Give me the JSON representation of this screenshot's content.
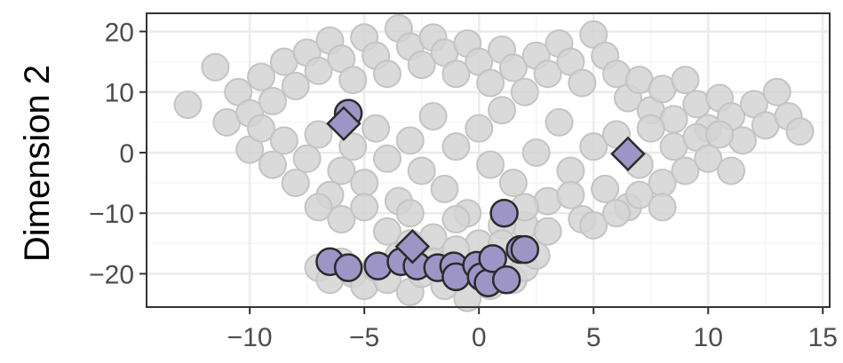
{
  "chart_data": {
    "type": "scatter",
    "title": "",
    "xlabel": "",
    "ylabel": "Dimension 2",
    "xlim": [
      -14.5,
      15.3
    ],
    "ylim": [
      -25.5,
      23
    ],
    "x_ticks": [
      -10,
      -5,
      0,
      5,
      10,
      15
    ],
    "y_ticks": [
      -20,
      -10,
      0,
      10,
      20
    ],
    "x_tick_labels": [
      "−10",
      "−5",
      "0",
      "5",
      "10",
      "15"
    ],
    "y_tick_labels": [
      "−20",
      "−10",
      "0",
      "10",
      "20"
    ],
    "grid": true,
    "legend": "none",
    "colors": {
      "background_point_fill": "#d3d3d3",
      "background_point_stroke": "#c4c4c4",
      "highlight_fill": "#9e95c7",
      "highlight_stroke": "#2b2b2b",
      "grid_major": "#ebebeb",
      "grid_minor": "#f5f5f5",
      "panel_border": "#333333"
    },
    "series": [
      {
        "marker": "circle",
        "style": "background",
        "points": [
          [
            -12.7,
            7.9
          ],
          [
            -11.5,
            14.1
          ],
          [
            -11,
            5
          ],
          [
            -10.5,
            10
          ],
          [
            -10,
            6.5
          ],
          [
            -9.5,
            12.5
          ],
          [
            -9,
            8.5
          ],
          [
            -8.5,
            15
          ],
          [
            -8,
            11
          ],
          [
            -7.5,
            16.5
          ],
          [
            -7,
            13.5
          ],
          [
            -6.5,
            18.5
          ],
          [
            -6,
            15.5
          ],
          [
            -5.5,
            12
          ],
          [
            -5,
            19
          ],
          [
            -4.5,
            16
          ],
          [
            -4,
            13
          ],
          [
            -3.5,
            20.5
          ],
          [
            -3,
            17.5
          ],
          [
            -2.5,
            14.5
          ],
          [
            -2,
            19
          ],
          [
            -1.5,
            16.5
          ],
          [
            -1,
            13
          ],
          [
            -0.5,
            18
          ],
          [
            0,
            15
          ],
          [
            0.5,
            11.5
          ],
          [
            1,
            17
          ],
          [
            1.5,
            14
          ],
          [
            2,
            10
          ],
          [
            2.5,
            16
          ],
          [
            3,
            13
          ],
          [
            3.5,
            18
          ],
          [
            4,
            15
          ],
          [
            4.5,
            11.5
          ],
          [
            5,
            19.5
          ],
          [
            5.5,
            16
          ],
          [
            6,
            13
          ],
          [
            6.5,
            9
          ],
          [
            7,
            12
          ],
          [
            7.5,
            7
          ],
          [
            8,
            10.5
          ],
          [
            8.5,
            5.5
          ],
          [
            9,
            12
          ],
          [
            9.5,
            8
          ],
          [
            10,
            4
          ],
          [
            10.5,
            9
          ],
          [
            11,
            6
          ],
          [
            11.5,
            2
          ],
          [
            12,
            8
          ],
          [
            12.5,
            4.5
          ],
          [
            13,
            10
          ],
          [
            13.5,
            6
          ],
          [
            14,
            3.5
          ],
          [
            -10,
            0.5
          ],
          [
            -9.5,
            4
          ],
          [
            -9,
            -2
          ],
          [
            -8.5,
            2
          ],
          [
            -8,
            -5
          ],
          [
            -7.5,
            -1
          ],
          [
            -7,
            3
          ],
          [
            -6.5,
            -7
          ],
          [
            -6,
            -3
          ],
          [
            -5.5,
            1
          ],
          [
            -5,
            -5
          ],
          [
            -4.5,
            4
          ],
          [
            -4,
            -1
          ],
          [
            -3.5,
            -8
          ],
          [
            -3,
            2
          ],
          [
            -2.5,
            -3
          ],
          [
            -2,
            6
          ],
          [
            -1.5,
            -6
          ],
          [
            -1,
            1
          ],
          [
            -0.5,
            -10
          ],
          [
            0,
            4
          ],
          [
            0.5,
            -2
          ],
          [
            1,
            7
          ],
          [
            1.5,
            -5
          ],
          [
            2,
            -12
          ],
          [
            2.5,
            0
          ],
          [
            3,
            -8
          ],
          [
            3.5,
            5
          ],
          [
            4,
            -3
          ],
          [
            4.5,
            -11
          ],
          [
            5,
            1
          ],
          [
            5.5,
            -6
          ],
          [
            6,
            3
          ],
          [
            6.5,
            -9
          ],
          [
            7,
            -2
          ],
          [
            7.5,
            4
          ],
          [
            8,
            -5
          ],
          [
            8.5,
            1
          ],
          [
            9,
            -3
          ],
          [
            9.5,
            2.5
          ],
          [
            10,
            -1
          ],
          [
            10.5,
            3
          ],
          [
            11,
            -3
          ],
          [
            -7,
            -9
          ],
          [
            -6,
            -11
          ],
          [
            -5,
            -9
          ],
          [
            -4,
            -13
          ],
          [
            -3,
            -10
          ],
          [
            -2,
            -14
          ],
          [
            -1,
            -11
          ],
          [
            0,
            -15
          ],
          [
            1,
            -12
          ],
          [
            2,
            -9
          ],
          [
            3,
            -13
          ],
          [
            4,
            -7
          ],
          [
            5,
            -12
          ],
          [
            6,
            -10
          ],
          [
            7,
            -7
          ],
          [
            8,
            -9
          ],
          [
            -7,
            -19
          ],
          [
            -6.5,
            -21
          ],
          [
            -6,
            -18
          ],
          [
            -5.5,
            -20
          ],
          [
            -5,
            -22
          ],
          [
            -4.5,
            -19
          ],
          [
            -4,
            -21
          ],
          [
            -3.5,
            -17
          ],
          [
            -3,
            -23
          ],
          [
            -2.5,
            -20
          ],
          [
            -2,
            -18
          ],
          [
            -1.5,
            -22
          ],
          [
            -1,
            -20
          ],
          [
            -0.5,
            -24
          ],
          [
            0,
            -19
          ],
          [
            0.5,
            -22
          ],
          [
            1,
            -18
          ],
          [
            1.5,
            -21
          ],
          [
            2,
            -19
          ],
          [
            2.5,
            -17
          ],
          [
            -3,
            -15
          ],
          [
            -1,
            -16
          ],
          [
            1,
            -15
          ]
        ]
      },
      {
        "marker": "circle",
        "style": "highlight",
        "points": [
          [
            -5.7,
            6.5
          ],
          [
            1.1,
            -10
          ],
          [
            -6.5,
            -18
          ],
          [
            -5.7,
            -19
          ],
          [
            -4.4,
            -18.7
          ],
          [
            -3.4,
            -18
          ],
          [
            -2.7,
            -18.7
          ],
          [
            -1.8,
            -19
          ],
          [
            -1.1,
            -18.7
          ],
          [
            -1,
            -20.5
          ],
          [
            -0.1,
            -18.6
          ],
          [
            0.1,
            -20.5
          ],
          [
            0.4,
            -21.5
          ],
          [
            0.6,
            -17.5
          ],
          [
            1.2,
            -21
          ],
          [
            1.8,
            -16
          ],
          [
            2,
            -16
          ]
        ]
      },
      {
        "marker": "diamond",
        "style": "highlight",
        "points": [
          [
            -5.9,
            4.8
          ],
          [
            -2.9,
            -15.5
          ],
          [
            6.5,
            -0.2
          ]
        ]
      }
    ]
  }
}
